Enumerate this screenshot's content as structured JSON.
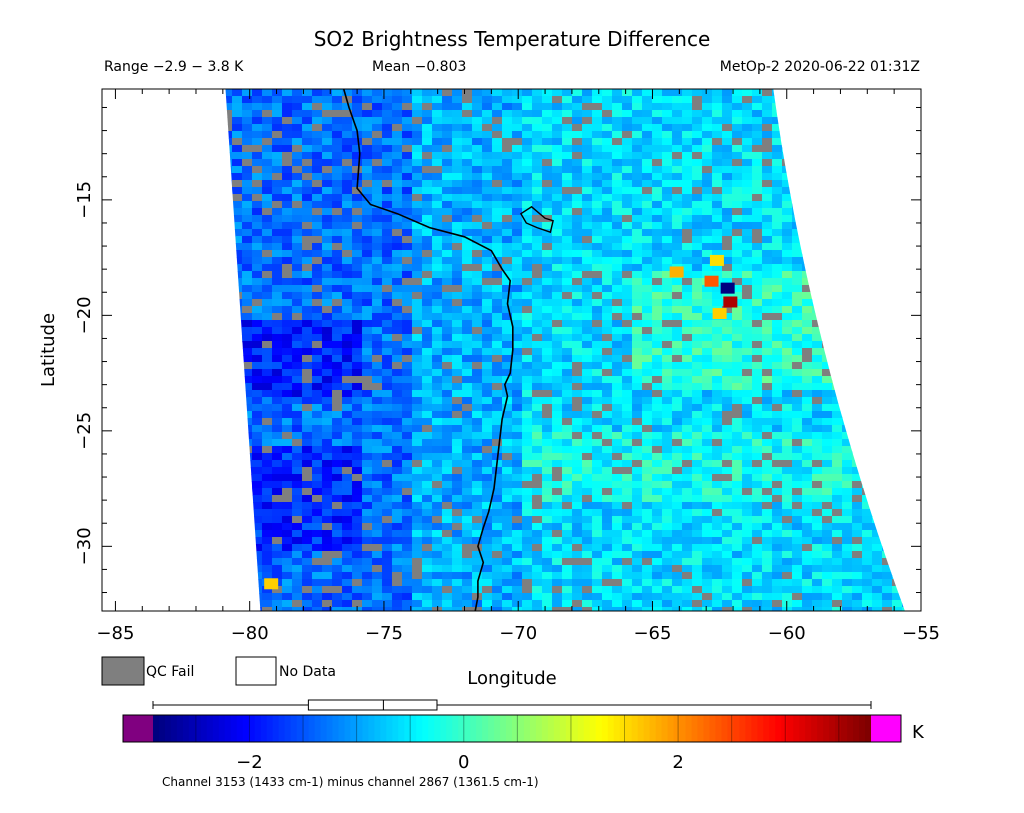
{
  "chart_data": {
    "type": "heatmap",
    "title": "SO2 Brightness Temperature Difference",
    "range_text": "Range −2.9 − 3.8 K",
    "mean_text": "Mean −0.803",
    "source_text": "MetOp-2 2020-06-22 01:31Z",
    "xlabel": "Longitude",
    "ylabel": "Latitude",
    "xlim": [
      -85.5,
      -55
    ],
    "ylim": [
      -32.8,
      -10.2
    ],
    "x_ticks": [
      -85,
      -80,
      -75,
      -70,
      -65,
      -60,
      -55
    ],
    "x_tick_labels": [
      "−85",
      "−80",
      "−75",
      "−70",
      "−65",
      "−60",
      "−55"
    ],
    "y_ticks": [
      -15,
      -20,
      -25,
      -30
    ],
    "y_tick_labels": [
      "−15",
      "−20",
      "−25",
      "−30"
    ],
    "swath": {
      "top_left_lon": -80.9,
      "top_right_lon": -60.5,
      "bottom_left_lon": -79.6,
      "bottom_right_lon": -55.6
    },
    "coastline": [
      [
        -76.5,
        -10.2
      ],
      [
        -76.3,
        -11
      ],
      [
        -76,
        -12
      ],
      [
        -75.9,
        -13
      ],
      [
        -76,
        -14.5
      ],
      [
        -75.5,
        -15.2
      ],
      [
        -74.5,
        -15.6
      ],
      [
        -73.3,
        -16.2
      ],
      [
        -72,
        -16.6
      ],
      [
        -71,
        -17.2
      ],
      [
        -70.6,
        -18
      ],
      [
        -70.3,
        -18.5
      ],
      [
        -70.4,
        -19.5
      ],
      [
        -70.2,
        -20.5
      ],
      [
        -70.2,
        -21.5
      ],
      [
        -70.3,
        -22.5
      ],
      [
        -70.5,
        -23
      ],
      [
        -70.4,
        -23.5
      ],
      [
        -70.6,
        -24.5
      ],
      [
        -70.7,
        -25.5
      ],
      [
        -70.8,
        -26.5
      ],
      [
        -70.9,
        -27.5
      ],
      [
        -71.1,
        -28.5
      ],
      [
        -71.3,
        -29.2
      ],
      [
        -71.5,
        -30
      ],
      [
        -71.3,
        -30.7
      ],
      [
        -71.5,
        -31.5
      ],
      [
        -71.5,
        -32.2
      ],
      [
        -71.6,
        -32.8
      ]
    ],
    "lake_titicaca": [
      [
        -69.9,
        -15.6
      ],
      [
        -69.5,
        -15.3
      ],
      [
        -69.2,
        -15.6
      ],
      [
        -69,
        -15.8
      ],
      [
        -68.7,
        -15.9
      ],
      [
        -68.8,
        -16.4
      ],
      [
        -69.3,
        -16.2
      ],
      [
        -69.7,
        -16
      ],
      [
        -69.9,
        -15.6
      ]
    ],
    "hotspots": [
      {
        "lon": -62.8,
        "lat": -18.5,
        "value": 2.4
      },
      {
        "lon": -62.1,
        "lat": -19.4,
        "value": 3.5
      },
      {
        "lon": -62.5,
        "lat": -19.9,
        "value": 1.6
      },
      {
        "lon": -64.1,
        "lat": -18.1,
        "value": 1.8
      },
      {
        "lon": -62.6,
        "lat": -17.6,
        "value": 1.5
      },
      {
        "lon": -79.2,
        "lat": -31.6,
        "value": 1.6
      },
      {
        "lon": -62.2,
        "lat": -18.8,
        "value": -2.9
      }
    ],
    "legend": {
      "qc_fail": "QC Fail",
      "no_data": "No Data"
    },
    "colorbar": {
      "min": -2.9,
      "max": 3.8,
      "ticks": [
        -2,
        0,
        2
      ],
      "tick_labels": [
        "−2",
        "0",
        "2"
      ],
      "unit": "K",
      "caption": "Channel 3153 (1433 cm-1) minus channel 2867 (1361.5 cm-1)",
      "boxplot": {
        "min": -2.9,
        "q1": -1.45,
        "median": -0.75,
        "q3": -0.25,
        "max": 3.8
      }
    },
    "colors": {
      "qc_fail": "#7f7f7f",
      "under": "#800080",
      "over": "#ff00ff",
      "coast": "#000000"
    }
  }
}
